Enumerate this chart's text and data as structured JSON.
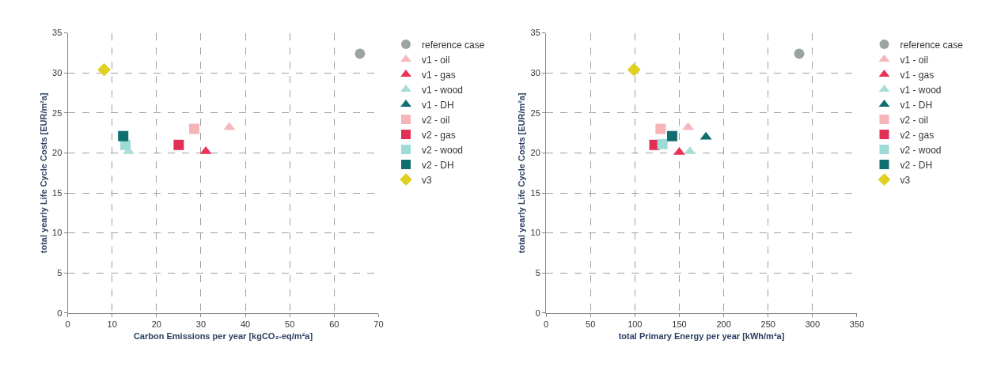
{
  "chart_data": [
    {
      "type": "scatter",
      "xlabel": "Carbon Emissions per year [kgCO₂-eq/m²a]",
      "ylabel": "total yearly Life Cycle Costs [EUR/m²a]",
      "xlim": [
        0,
        70
      ],
      "xticks": [
        0,
        10,
        20,
        30,
        40,
        50,
        60,
        70
      ],
      "ylim": [
        0,
        35
      ],
      "yticks": [
        0,
        5,
        10,
        15,
        20,
        25,
        30,
        35
      ],
      "grid": true,
      "legend": "right",
      "series": [
        {
          "name": "reference case",
          "color": "#9aa5a0",
          "marker": "circle",
          "x": [
            65.8
          ],
          "values": [
            32.4
          ]
        },
        {
          "name": "v1 - oil",
          "color": "#f4b8bc",
          "marker": "triangle",
          "x": [
            36.4
          ],
          "values": [
            23.2
          ]
        },
        {
          "name": "v1 - gas",
          "color": "#e8325a",
          "marker": "triangle",
          "x": [
            31.1
          ],
          "values": [
            20.2
          ]
        },
        {
          "name": "v1 - wood",
          "color": "#a8ddd5",
          "marker": "triangle",
          "x": [
            13.7
          ],
          "values": [
            20.2
          ]
        },
        {
          "name": "v1 - DH",
          "color": "#0f6e6e",
          "marker": "triangle",
          "x": [
            null
          ],
          "values": [
            null
          ]
        },
        {
          "name": "v2 - oil",
          "color": "#f4b4b8",
          "marker": "square",
          "x": [
            28.5
          ],
          "values": [
            23.0
          ]
        },
        {
          "name": "v2 - gas",
          "color": "#e22f55",
          "marker": "square",
          "x": [
            25.0
          ],
          "values": [
            21.0
          ]
        },
        {
          "name": "v2 - wood",
          "color": "#9edbd6",
          "marker": "square",
          "x": [
            13.0
          ],
          "values": [
            21.0
          ]
        },
        {
          "name": "v2 - DH",
          "color": "#106e70",
          "marker": "square",
          "x": [
            12.5
          ],
          "values": [
            22.1
          ]
        },
        {
          "name": "v3",
          "color": "#e0d020",
          "marker": "diamond",
          "x": [
            8.2
          ],
          "values": [
            30.4
          ]
        }
      ]
    },
    {
      "type": "scatter",
      "xlabel": "total Primary Energy per year [kWh/m²a]",
      "ylabel": "total yearly Life Cycle Costs [EUR/m²a]",
      "xlim": [
        0,
        350
      ],
      "xticks": [
        0,
        50,
        100,
        150,
        200,
        250,
        300,
        350
      ],
      "ylim": [
        0,
        35
      ],
      "yticks": [
        0,
        5,
        10,
        15,
        20,
        25,
        30,
        35
      ],
      "grid": true,
      "legend": "right",
      "series": [
        {
          "name": "reference case",
          "color": "#9aa5a0",
          "marker": "circle",
          "x": [
            285
          ],
          "values": [
            32.4
          ]
        },
        {
          "name": "v1 - oil",
          "color": "#f4b8bc",
          "marker": "triangle",
          "x": [
            160
          ],
          "values": [
            23.2
          ]
        },
        {
          "name": "v1 - gas",
          "color": "#e8325a",
          "marker": "triangle",
          "x": [
            150
          ],
          "values": [
            20.1
          ]
        },
        {
          "name": "v1 - wood",
          "color": "#a8ddd5",
          "marker": "triangle",
          "x": [
            162
          ],
          "values": [
            20.2
          ]
        },
        {
          "name": "v1 - DH",
          "color": "#0f6e6e",
          "marker": "triangle",
          "x": [
            180
          ],
          "values": [
            22.0
          ]
        },
        {
          "name": "v2 - oil",
          "color": "#f4b4b8",
          "marker": "square",
          "x": [
            129
          ],
          "values": [
            23.0
          ]
        },
        {
          "name": "v2 - gas",
          "color": "#e22f55",
          "marker": "square",
          "x": [
            122
          ],
          "values": [
            21.0
          ]
        },
        {
          "name": "v2 - wood",
          "color": "#9edbd6",
          "marker": "square",
          "x": [
            131
          ],
          "values": [
            21.1
          ]
        },
        {
          "name": "v2 - DH",
          "color": "#106e70",
          "marker": "square",
          "x": [
            142
          ],
          "values": [
            22.1
          ]
        },
        {
          "name": "v3",
          "color": "#e0d020",
          "marker": "diamond",
          "x": [
            99
          ],
          "values": [
            30.4
          ]
        }
      ]
    }
  ]
}
